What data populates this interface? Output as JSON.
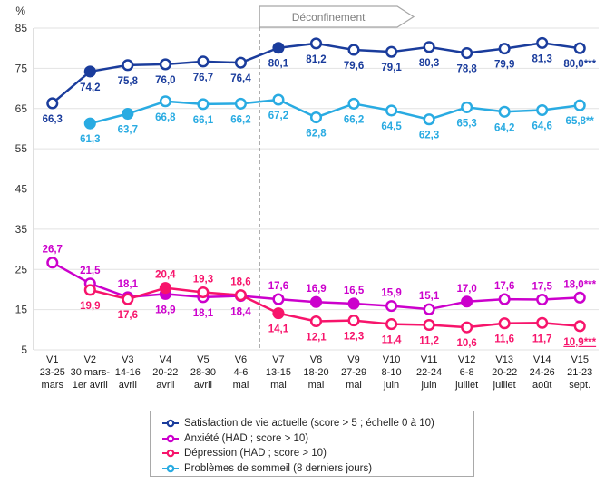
{
  "chart_data": {
    "type": "line",
    "title": "",
    "y_axis": {
      "unit": "%",
      "ticks": [
        85,
        75,
        65,
        55,
        45,
        35,
        25,
        15,
        5
      ],
      "min": 5,
      "max": 85,
      "grid": true
    },
    "annotation": {
      "text": "Déconfinement",
      "style": "gray arrow banner starting at dashed line"
    },
    "dashed_line_after": "V6",
    "legend_position": "bottom-center-boxed",
    "categories": [
      {
        "id": "V1",
        "date_lines": [
          "23-25",
          "mars"
        ]
      },
      {
        "id": "V2",
        "date_lines": [
          "30 mars-",
          "1er avril"
        ]
      },
      {
        "id": "V3",
        "date_lines": [
          "14-16",
          "avril"
        ]
      },
      {
        "id": "V4",
        "date_lines": [
          "20-22",
          "avril"
        ]
      },
      {
        "id": "V5",
        "date_lines": [
          "28-30",
          "avril"
        ]
      },
      {
        "id": "V6",
        "date_lines": [
          "4-6",
          "mai"
        ]
      },
      {
        "id": "V7",
        "date_lines": [
          "13-15",
          "mai"
        ]
      },
      {
        "id": "V8",
        "date_lines": [
          "18-20",
          "mai"
        ]
      },
      {
        "id": "V9",
        "date_lines": [
          "27-29",
          "mai"
        ]
      },
      {
        "id": "V10",
        "date_lines": [
          "8-10",
          "juin"
        ]
      },
      {
        "id": "V11",
        "date_lines": [
          "22-24",
          "juin"
        ]
      },
      {
        "id": "V12",
        "date_lines": [
          "6-8",
          "juillet"
        ]
      },
      {
        "id": "V13",
        "date_lines": [
          "20-22",
          "juillet"
        ]
      },
      {
        "id": "V14",
        "date_lines": [
          "24-26",
          "août"
        ]
      },
      {
        "id": "V15",
        "date_lines": [
          "21-23",
          "sept."
        ]
      }
    ],
    "z_order": [
      "satisfaction",
      "sommeil",
      "anxiete",
      "depression"
    ],
    "series": [
      {
        "id": "satisfaction",
        "legend": "Satisfaction de vie actuelle (score > 5 ; échelle 0 à 10)",
        "color": "#1A3C9C",
        "points": [
          {
            "cat": "V1",
            "value": 66.3,
            "label": "66,3",
            "filled": false,
            "label_pos": "below"
          },
          {
            "cat": "V2",
            "value": 74.2,
            "label": "74,2",
            "filled": true,
            "label_pos": "below"
          },
          {
            "cat": "V3",
            "value": 75.8,
            "label": "75,8",
            "filled": false,
            "label_pos": "below"
          },
          {
            "cat": "V4",
            "value": 76.0,
            "label": "76,0",
            "filled": false,
            "label_pos": "below"
          },
          {
            "cat": "V5",
            "value": 76.7,
            "label": "76,7",
            "filled": false,
            "label_pos": "below"
          },
          {
            "cat": "V6",
            "value": 76.4,
            "label": "76,4",
            "filled": false,
            "label_pos": "below"
          },
          {
            "cat": "V7",
            "value": 80.1,
            "label": "80,1",
            "filled": true,
            "label_pos": "below"
          },
          {
            "cat": "V8",
            "value": 81.2,
            "label": "81,2",
            "filled": false,
            "label_pos": "below"
          },
          {
            "cat": "V9",
            "value": 79.6,
            "label": "79,6",
            "filled": false,
            "label_pos": "below"
          },
          {
            "cat": "V10",
            "value": 79.1,
            "label": "79,1",
            "filled": false,
            "label_pos": "below"
          },
          {
            "cat": "V11",
            "value": 80.3,
            "label": "80,3",
            "filled": false,
            "label_pos": "below"
          },
          {
            "cat": "V12",
            "value": 78.8,
            "label": "78,8",
            "filled": false,
            "label_pos": "below"
          },
          {
            "cat": "V13",
            "value": 79.9,
            "label": "79,9",
            "filled": false,
            "label_pos": "below"
          },
          {
            "cat": "V14",
            "value": 81.3,
            "label": "81,3",
            "filled": false,
            "label_pos": "below"
          },
          {
            "cat": "V15",
            "value": 80.0,
            "label": "80,0***",
            "filled": false,
            "label_pos": "below"
          }
        ]
      },
      {
        "id": "anxiete",
        "legend": "Anxiété (HAD ; score > 10)",
        "color": "#CC00CC",
        "points": [
          {
            "cat": "V1",
            "value": 26.7,
            "label": "26,7",
            "filled": false,
            "label_pos": "above"
          },
          {
            "cat": "V2",
            "value": 21.5,
            "label": "21,5",
            "filled": false,
            "label_pos": "above"
          },
          {
            "cat": "V3",
            "value": 18.1,
            "label": "18,1",
            "filled": false,
            "label_pos": "above"
          },
          {
            "cat": "V4",
            "value": 18.9,
            "label": "18,9",
            "filled": true,
            "label_pos": "below"
          },
          {
            "cat": "V5",
            "value": 18.1,
            "label": "18,1",
            "filled": false,
            "label_pos": "below"
          },
          {
            "cat": "V6",
            "value": 18.4,
            "label": "18,4",
            "filled": false,
            "label_pos": "below"
          },
          {
            "cat": "V7",
            "value": 17.6,
            "label": "17,6",
            "filled": false,
            "label_pos": "above"
          },
          {
            "cat": "V8",
            "value": 16.9,
            "label": "16,9",
            "filled": true,
            "label_pos": "above"
          },
          {
            "cat": "V9",
            "value": 16.5,
            "label": "16,5",
            "filled": true,
            "label_pos": "above"
          },
          {
            "cat": "V10",
            "value": 15.9,
            "label": "15,9",
            "filled": false,
            "label_pos": "above"
          },
          {
            "cat": "V11",
            "value": 15.1,
            "label": "15,1",
            "filled": false,
            "label_pos": "above"
          },
          {
            "cat": "V12",
            "value": 17.0,
            "label": "17,0",
            "filled": true,
            "label_pos": "above"
          },
          {
            "cat": "V13",
            "value": 17.6,
            "label": "17,6",
            "filled": false,
            "label_pos": "above"
          },
          {
            "cat": "V14",
            "value": 17.5,
            "label": "17,5",
            "filled": false,
            "label_pos": "above"
          },
          {
            "cat": "V15",
            "value": 18.0,
            "label": "18,0***",
            "filled": false,
            "label_pos": "above"
          }
        ]
      },
      {
        "id": "depression",
        "legend": "Dépression (HAD ; score > 10)",
        "color": "#F7146B",
        "points": [
          {
            "cat": "V2",
            "value": 19.9,
            "label": "19,9",
            "filled": false,
            "label_pos": "below"
          },
          {
            "cat": "V3",
            "value": 17.6,
            "label": "17,6",
            "filled": false,
            "label_pos": "below"
          },
          {
            "cat": "V4",
            "value": 20.4,
            "label": "20,4",
            "filled": true,
            "label_pos": "above"
          },
          {
            "cat": "V5",
            "value": 19.3,
            "label": "19,3",
            "filled": false,
            "label_pos": "above"
          },
          {
            "cat": "V6",
            "value": 18.6,
            "label": "18,6",
            "filled": false,
            "label_pos": "above"
          },
          {
            "cat": "V7",
            "value": 14.1,
            "label": "14,1",
            "filled": true,
            "label_pos": "below"
          },
          {
            "cat": "V8",
            "value": 12.1,
            "label": "12,1",
            "filled": false,
            "label_pos": "below"
          },
          {
            "cat": "V9",
            "value": 12.3,
            "label": "12,3",
            "filled": false,
            "label_pos": "below"
          },
          {
            "cat": "V10",
            "value": 11.4,
            "label": "11,4",
            "filled": false,
            "label_pos": "below"
          },
          {
            "cat": "V11",
            "value": 11.2,
            "label": "11,2",
            "filled": false,
            "label_pos": "below"
          },
          {
            "cat": "V12",
            "value": 10.6,
            "label": "10,6",
            "filled": false,
            "label_pos": "below"
          },
          {
            "cat": "V13",
            "value": 11.6,
            "label": "11,6",
            "filled": false,
            "label_pos": "below"
          },
          {
            "cat": "V14",
            "value": 11.7,
            "label": "11,7",
            "filled": false,
            "label_pos": "below"
          },
          {
            "cat": "V15",
            "value": 10.9,
            "label": "10,9***",
            "filled": false,
            "label_pos": "below",
            "underline": true
          }
        ]
      },
      {
        "id": "sommeil",
        "legend": "Problèmes de sommeil (8 derniers jours)",
        "color": "#29ABE2",
        "points": [
          {
            "cat": "V2",
            "value": 61.3,
            "label": "61,3",
            "filled": true,
            "label_pos": "below"
          },
          {
            "cat": "V3",
            "value": 63.7,
            "label": "63,7",
            "filled": true,
            "label_pos": "below"
          },
          {
            "cat": "V4",
            "value": 66.8,
            "label": "66,8",
            "filled": false,
            "label_pos": "below"
          },
          {
            "cat": "V5",
            "value": 66.1,
            "label": "66,1",
            "filled": false,
            "label_pos": "below"
          },
          {
            "cat": "V6",
            "value": 66.2,
            "label": "66,2",
            "filled": false,
            "label_pos": "below"
          },
          {
            "cat": "V7",
            "value": 67.2,
            "label": "67,2",
            "filled": false,
            "label_pos": "below"
          },
          {
            "cat": "V8",
            "value": 62.8,
            "label": "62,8",
            "filled": false,
            "label_pos": "below"
          },
          {
            "cat": "V9",
            "value": 66.2,
            "label": "66,2",
            "filled": false,
            "label_pos": "below"
          },
          {
            "cat": "V10",
            "value": 64.5,
            "label": "64,5",
            "filled": false,
            "label_pos": "below"
          },
          {
            "cat": "V11",
            "value": 62.3,
            "label": "62,3",
            "filled": false,
            "label_pos": "below"
          },
          {
            "cat": "V12",
            "value": 65.3,
            "label": "65,3",
            "filled": false,
            "label_pos": "below"
          },
          {
            "cat": "V13",
            "value": 64.2,
            "label": "64,2",
            "filled": false,
            "label_pos": "below"
          },
          {
            "cat": "V14",
            "value": 64.6,
            "label": "64,6",
            "filled": false,
            "label_pos": "below"
          },
          {
            "cat": "V15",
            "value": 65.8,
            "label": "65,8**",
            "filled": false,
            "label_pos": "below"
          }
        ]
      }
    ],
    "colors": {
      "grid": "#E2E2E2",
      "axis": "#BFBFBF",
      "dashed_line": "#8C8C8C",
      "banner_border": "#A6A6A6",
      "banner_text": "#7F7F7F",
      "y_tick_text": "#333333",
      "x_tick_text": "#1A1A1A"
    }
  }
}
